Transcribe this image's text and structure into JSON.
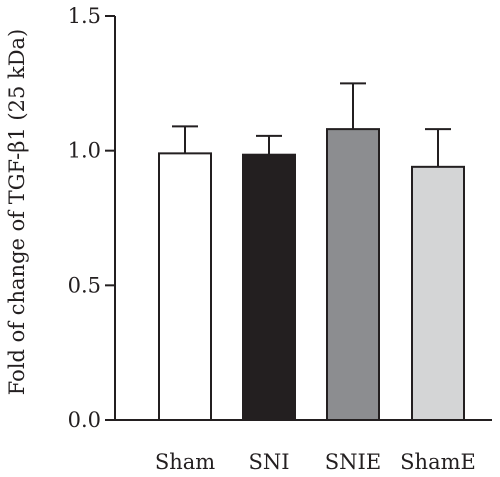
{
  "chart_data": {
    "type": "bar",
    "title": "",
    "xlabel": "",
    "ylabel": "Fold of change of TGF-β1 (25 kDa)",
    "categories": [
      "Sham",
      "SNI",
      "SNIE",
      "ShamE"
    ],
    "values": [
      0.99,
      0.985,
      1.08,
      0.94
    ],
    "error_upper": [
      0.1,
      0.07,
      0.17,
      0.14
    ],
    "bar_colors": [
      "#ffffff",
      "#231f20",
      "#8c8d90",
      "#d4d5d6"
    ],
    "ylim": [
      0,
      1.5
    ],
    "yticks": [
      0.0,
      0.5,
      1.0,
      1.5
    ],
    "ytick_labels": [
      "0.0",
      "0.5",
      "1.0",
      "1.5"
    ],
    "grid": false,
    "legend": "none"
  }
}
